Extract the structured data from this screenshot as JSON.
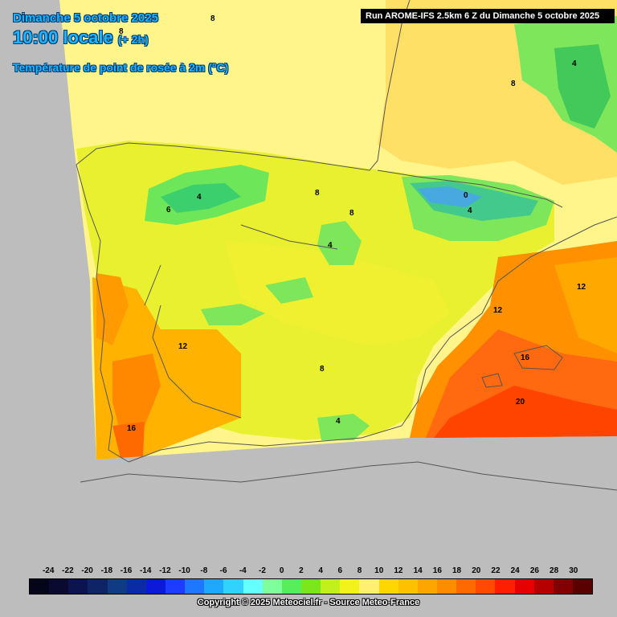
{
  "header": {
    "line1": "Dimanche 5 octobre 2025",
    "line2_main": "10:00 locale",
    "line2_offset": "(+ 2h)",
    "line3": "Température de point de rosée à 2m (°C)",
    "run_info": "Run AROME-IFS 2.5km 6 Z du Dimanche 5 octobre 2025"
  },
  "footer": {
    "copyright": "Copyright © 2025 Meteociel.fr - Source Meteo-France"
  },
  "scale": {
    "labels": [
      "-24",
      "-22",
      "-20",
      "-18",
      "-16",
      "-14",
      "-12",
      "-10",
      "-8",
      "-6",
      "-4",
      "-2",
      "0",
      "2",
      "4",
      "6",
      "8",
      "10",
      "12",
      "14",
      "16",
      "18",
      "20",
      "22",
      "24",
      "26",
      "28",
      "30"
    ],
    "colors": [
      "#05051a",
      "#0a0a30",
      "#0c1450",
      "#0e2464",
      "#103a84",
      "#0a2aa8",
      "#0a1ad8",
      "#1e3cff",
      "#1e78ff",
      "#1ea8ff",
      "#32d2ff",
      "#66ffff",
      "#7cff9c",
      "#56ee5a",
      "#7ce61c",
      "#c2f01c",
      "#f2f21c",
      "#fff070",
      "#ffd700",
      "#ffc000",
      "#ffa500",
      "#ff8c00",
      "#ff6a00",
      "#ff4a00",
      "#ff1e00",
      "#e60000",
      "#b40000",
      "#820000",
      "#5a0000"
    ]
  },
  "map_labels": {
    "iso_8a": "8",
    "iso_8b": "8",
    "iso_8c": "8",
    "iso_8d": "8",
    "iso_8e": "8",
    "iso_8f": "8",
    "iso_4a": "4",
    "iso_4b": "4",
    "iso_4c": "4",
    "iso_4d": "4",
    "iso_4e": "4",
    "iso_6": "6",
    "iso_0": "0",
    "iso_12a": "12",
    "iso_12b": "12",
    "iso_12c": "12",
    "iso_16a": "16",
    "iso_16b": "16",
    "iso_20": "20"
  }
}
